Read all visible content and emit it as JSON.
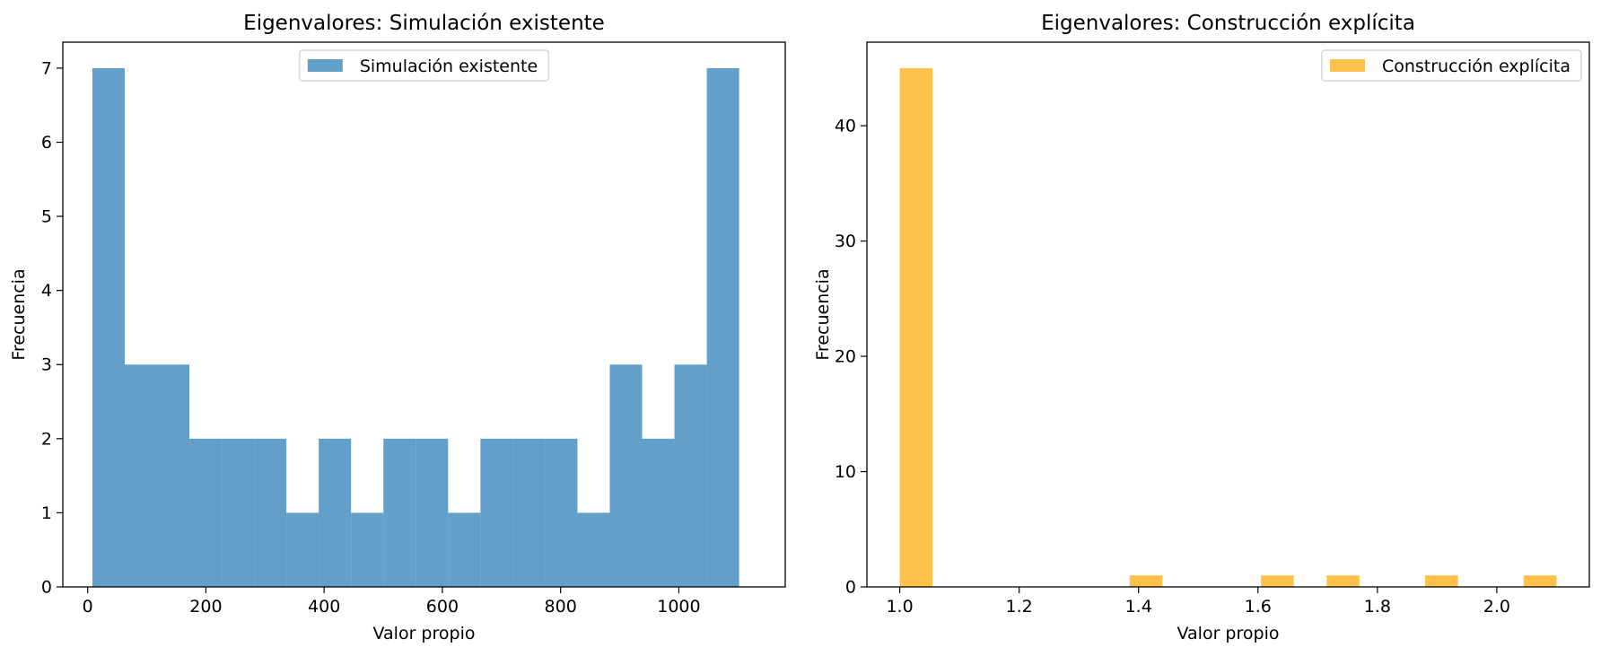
{
  "chart_data": [
    {
      "type": "bar",
      "title": "Eigenvalores: Simulación existente",
      "xlabel": "Valor propio",
      "ylabel": "Frecuencia",
      "color": "#1f77b4",
      "opacity": 0.7,
      "legend": {
        "label": "Simulación existente",
        "position": "upper center"
      },
      "bin_edges": [
        8,
        62.7,
        117.4,
        172.1,
        226.8,
        281.5,
        336.2,
        390.9,
        445.6,
        500.3,
        555,
        609.7,
        664.4,
        719.1,
        773.8,
        828.5,
        883.2,
        937.9,
        992.6,
        1047.3,
        1102
      ],
      "values": [
        7,
        3,
        3,
        2,
        2,
        2,
        1,
        2,
        1,
        2,
        2,
        1,
        2,
        2,
        2,
        1,
        3,
        2,
        3,
        7
      ],
      "xlim": [
        -42,
        1180
      ],
      "ylim": [
        0,
        7.35
      ],
      "xticks": [
        0,
        200,
        400,
        600,
        800,
        1000
      ],
      "xtick_labels": [
        "0",
        "200",
        "400",
        "600",
        "800",
        "1000"
      ],
      "yticks": [
        0,
        1,
        2,
        3,
        4,
        5,
        6,
        7
      ],
      "ytick_labels": [
        "0",
        "1",
        "2",
        "3",
        "4",
        "5",
        "6",
        "7"
      ]
    },
    {
      "type": "bar",
      "title": "Eigenvalores: Construcción explícita",
      "xlabel": "Valor propio",
      "ylabel": "Frecuencia",
      "color": "#ffa500",
      "opacity": 0.7,
      "legend": {
        "label": "Construcción explícita",
        "position": "upper right"
      },
      "bin_edges": [
        1.0,
        1.055,
        1.11,
        1.165,
        1.22,
        1.275,
        1.33,
        1.385,
        1.44,
        1.495,
        1.55,
        1.605,
        1.66,
        1.715,
        1.77,
        1.825,
        1.88,
        1.935,
        1.99,
        2.045,
        2.1
      ],
      "values": [
        45,
        0,
        0,
        0,
        0,
        0,
        0,
        1,
        0,
        0,
        0,
        1,
        0,
        1,
        0,
        0,
        1,
        0,
        0,
        1
      ],
      "xlim": [
        0.945,
        2.155
      ],
      "ylim": [
        0,
        47.25
      ],
      "xticks": [
        1.0,
        1.2,
        1.4,
        1.6,
        1.8,
        2.0
      ],
      "xtick_labels": [
        "1.0",
        "1.2",
        "1.4",
        "1.6",
        "1.8",
        "2.0"
      ],
      "yticks": [
        0,
        10,
        20,
        30,
        40
      ],
      "ytick_labels": [
        "0",
        "10",
        "20",
        "30",
        "40"
      ]
    }
  ]
}
